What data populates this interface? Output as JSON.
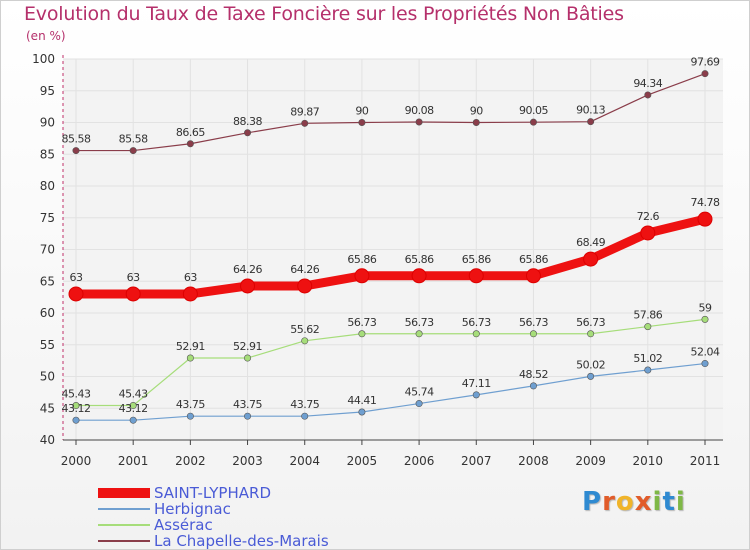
{
  "chart_data": {
    "type": "line",
    "title": "Evolution du Taux de Taxe Foncière sur les Propriétés Non Bâties",
    "subtitle": "(en %)",
    "xlabel": "",
    "ylabel": "",
    "x": [
      "2000",
      "2001",
      "2002",
      "2003",
      "2004",
      "2005",
      "2006",
      "2007",
      "2008",
      "2009",
      "2010",
      "2011"
    ],
    "ylim": [
      40,
      100
    ],
    "yticks": [
      40,
      45,
      50,
      55,
      60,
      65,
      70,
      75,
      80,
      85,
      90,
      95,
      100
    ],
    "grid": true,
    "legend_position": "bottom-left",
    "series": [
      {
        "name": "SAINT-LYPHARD",
        "color": "#ee1111",
        "values": [
          63,
          63,
          63,
          64.26,
          64.26,
          65.86,
          65.86,
          65.86,
          65.86,
          68.49,
          72.6,
          74.78
        ],
        "labels": [
          "63",
          "63",
          "63",
          "64.26",
          "64.26",
          "65.86",
          "65.86",
          "65.86",
          "65.86",
          "68.49",
          "72.6",
          "74.78"
        ]
      },
      {
        "name": "Herbignac",
        "color": "#6f9fd0",
        "values": [
          43.12,
          43.12,
          43.75,
          43.75,
          43.75,
          44.41,
          45.74,
          47.11,
          48.52,
          50.02,
          51.02,
          52.04
        ],
        "labels": [
          "43.12",
          "43.12",
          "43.75",
          "43.75",
          "43.75",
          "44.41",
          "45.74",
          "47.11",
          "48.52",
          "50.02",
          "51.02",
          "52.04"
        ]
      },
      {
        "name": "Assérac",
        "color": "#a6dd7a",
        "values": [
          45.43,
          45.43,
          52.91,
          52.91,
          55.62,
          56.73,
          56.73,
          56.73,
          56.73,
          56.73,
          57.86,
          59
        ],
        "labels": [
          "45.43",
          "45.43",
          "52.91",
          "52.91",
          "55.62",
          "56.73",
          "56.73",
          "56.73",
          "56.73",
          "56.73",
          "57.86",
          "59"
        ]
      },
      {
        "name": "La Chapelle-des-Marais",
        "color": "#8a3d4a",
        "values": [
          85.58,
          85.58,
          86.65,
          88.38,
          89.87,
          90,
          90.08,
          90,
          90.05,
          90.13,
          94.34,
          97.69
        ],
        "labels": [
          "85.58",
          "85.58",
          "86.65",
          "88.38",
          "89.87",
          "90",
          "90.08",
          "90",
          "90.05",
          "90.13",
          "94.34",
          "97.69"
        ]
      }
    ]
  },
  "logo": {
    "letters": [
      "P",
      "r",
      "o",
      "x",
      "i",
      "t",
      "i"
    ]
  }
}
